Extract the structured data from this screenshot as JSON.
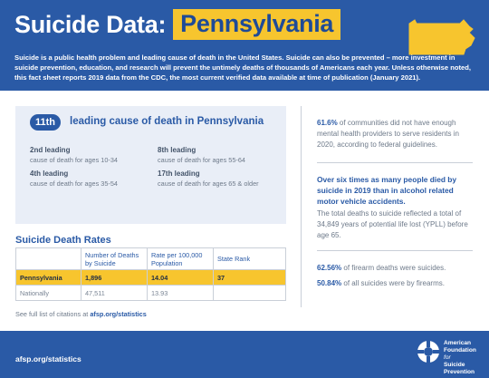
{
  "header": {
    "title_main": "Suicide Data:",
    "title_state": "Pennsylvania",
    "intro": "Suicide is a public health problem and leading cause of death in the United States. Suicide can also be prevented – more investment in suicide prevention, education, and research will prevent the untimely deaths of thousands of Americans each year. Unless otherwise noted, this fact sheet reports 2019 data from the CDC, the most current verified data available at time of publication (January 2021).",
    "map_icon": "pennsylvania-outline-icon"
  },
  "ranking": {
    "badge": "11th",
    "text": "leading cause of death in Pennsylvania",
    "items": [
      {
        "label": "2nd leading",
        "sub": "cause of death for ages 10-34"
      },
      {
        "label": "4th leading",
        "sub": "cause of death for ages 35-54"
      },
      {
        "label": "8th leading",
        "sub": "cause of death for ages 55-64"
      },
      {
        "label": "17th leading",
        "sub": "cause of death for ages 65 & older"
      }
    ]
  },
  "rates": {
    "title": "Suicide Death Rates",
    "headers": [
      "",
      "Number of Deaths by Suicide",
      "Rate per 100,000 Population",
      "State Rank"
    ],
    "rows": [
      [
        "Pennsylvania",
        "1,896",
        "14.04",
        "37"
      ],
      [
        "Nationally",
        "47,511",
        "13.93",
        ""
      ]
    ]
  },
  "citation": {
    "prefix": "See full list of citations at",
    "link": "afsp.org/statistics"
  },
  "right": {
    "fact1_highlight": "61.6%",
    "fact1_rest": "of communities did not have enough mental health providers to serve residents in 2020, according to federal guidelines.",
    "fact2": "Over six times as many people died by suicide in 2019 than in alcohol related motor vehicle accidents.",
    "fact3": "The total deaths to suicide reflected a total of 34,849 years of potential life lost (YPLL) before age 65.",
    "fact4_highlight": "62.56%",
    "fact4_rest": "of firearm deaths were suicides.",
    "fact5_highlight": "50.84%",
    "fact5_rest": "of all suicides were by firearms."
  },
  "footer": {
    "link": "afsp.org/statistics",
    "org_lines": [
      "American",
      "Foundation",
      "for",
      "Suicide",
      "Prevention"
    ],
    "logo_icon": "afsp-lifesaver-icon"
  },
  "colors": {
    "brand_blue": "#2a5aa6",
    "accent_yellow": "#f7c52e"
  }
}
